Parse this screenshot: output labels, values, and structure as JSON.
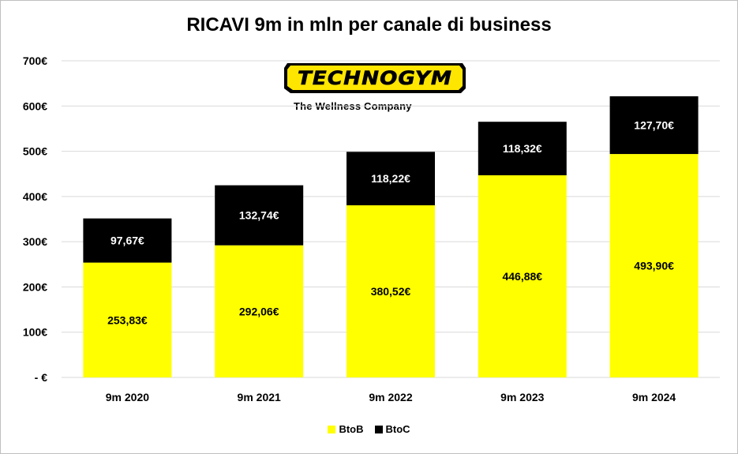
{
  "chart_data": {
    "type": "bar",
    "stacked": true,
    "title": "RICAVI 9m in mln per canale di business",
    "categories": [
      "9m 2020",
      "9m 2021",
      "9m 2022",
      "9m 2023",
      "9m 2024"
    ],
    "series": [
      {
        "name": "BtoB",
        "color": "#ffff00",
        "label_color": "#000000",
        "values": [
          253.83,
          292.06,
          380.52,
          446.88,
          493.9
        ],
        "labels": [
          "253,83€",
          "292,06€",
          "380,52€",
          "446,88€",
          "493,90€"
        ]
      },
      {
        "name": "BtoC",
        "color": "#000000",
        "label_color": "#ffffff",
        "values": [
          97.67,
          132.74,
          118.22,
          118.32,
          127.7
        ],
        "labels": [
          "97,67€",
          "132,74€",
          "118,22€",
          "118,32€",
          "127,70€"
        ]
      }
    ],
    "ylim": [
      0,
      700
    ],
    "yticks": [
      0,
      100,
      200,
      300,
      400,
      500,
      600,
      700
    ],
    "ytick_labels": [
      "- €",
      "100€",
      "200€",
      "300€",
      "400€",
      "500€",
      "600€",
      "700€"
    ],
    "grid": true,
    "legend_position": "bottom"
  },
  "logo": {
    "brand_text": "TECHNOGYM",
    "tagline": "The Wellness Company"
  }
}
